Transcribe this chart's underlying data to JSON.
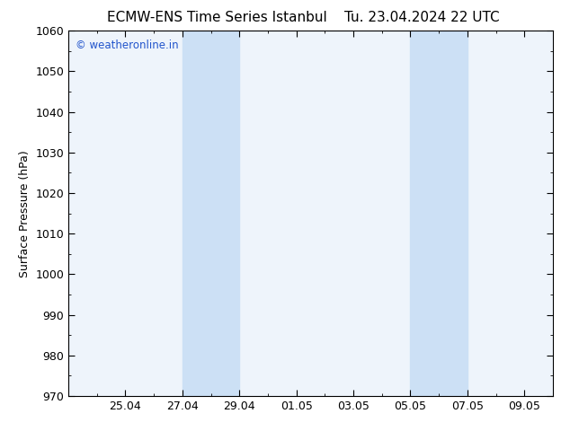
{
  "title_left": "ECMW-ENS Time Series Istanbul",
  "title_right": "Tu. 23.04.2024 22 UTC",
  "ylabel": "Surface Pressure (hPa)",
  "ylim": [
    970,
    1060
  ],
  "yticks": [
    970,
    980,
    990,
    1000,
    1010,
    1020,
    1030,
    1040,
    1050,
    1060
  ],
  "xlim": [
    0,
    17
  ],
  "xtick_labels": [
    "25.04",
    "27.04",
    "29.04",
    "01.05",
    "03.05",
    "05.05",
    "07.05",
    "09.05"
  ],
  "xtick_positions": [
    2,
    4,
    6,
    8,
    10,
    12,
    14,
    16
  ],
  "shaded_regions": [
    {
      "xmin": 4,
      "xmax": 6
    },
    {
      "xmin": 12,
      "xmax": 14
    }
  ],
  "plot_bg_color": "#eef4fb",
  "shaded_color": "#cce0f5",
  "fig_bg_color": "#ffffff",
  "watermark_text": "© weatheronline.in",
  "watermark_color": "#2255cc",
  "title_fontsize": 11,
  "ylabel_fontsize": 9,
  "tick_fontsize": 9
}
